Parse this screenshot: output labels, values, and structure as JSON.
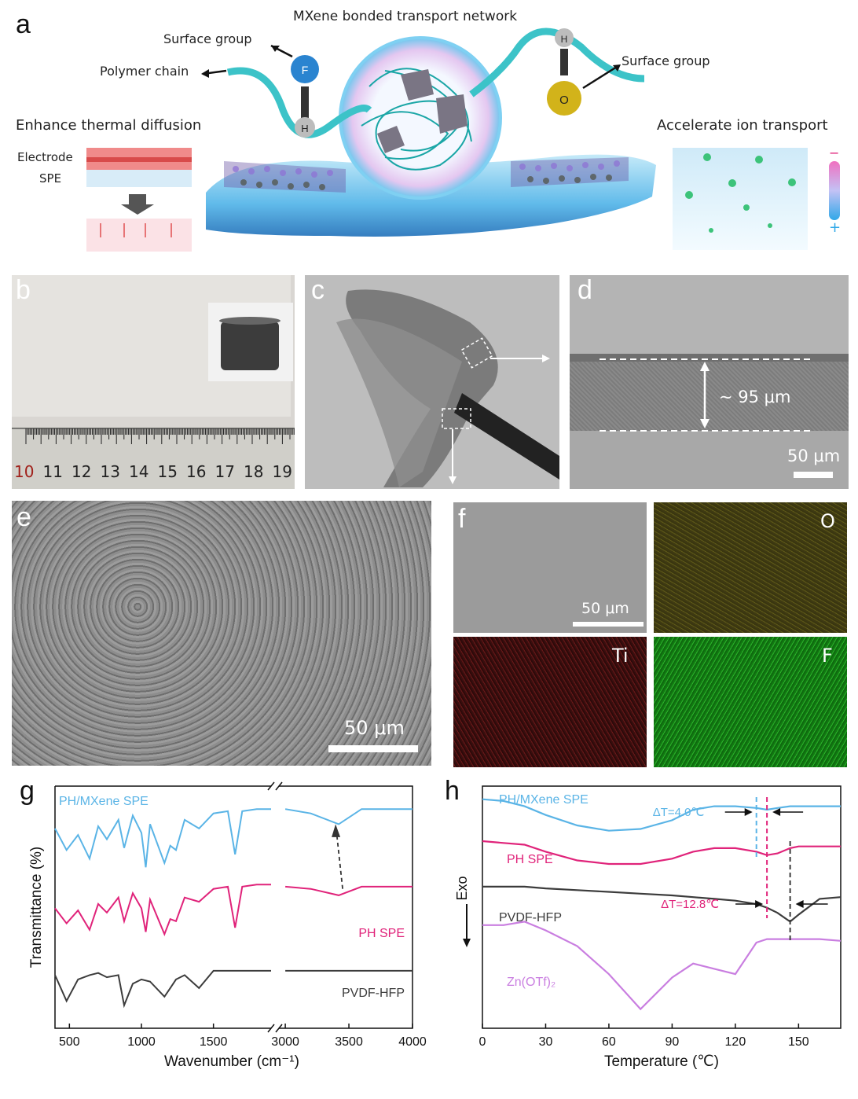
{
  "panels": {
    "a": "a",
    "b": "b",
    "c": "c",
    "d": "d",
    "e": "e",
    "f": "f",
    "g": "g",
    "h": "h"
  },
  "schematic": {
    "title": "MXene bonded transport network",
    "surface_group_left": "Surface group",
    "surface_group_right": "Surface group",
    "polymer_chain": "Polymer chain",
    "thermal": "Enhance thermal diffusion",
    "ion": "Accelerate ion transport",
    "electrode": "Electrode",
    "spe": "SPE",
    "atom_f": "F",
    "atom_h1": "H",
    "atom_h2": "H",
    "atom_o": "O",
    "minus": "−",
    "plus": "+"
  },
  "ruler": {
    "numbers": [
      "10",
      "11",
      "12",
      "13",
      "14",
      "15",
      "16",
      "17",
      "18",
      "19"
    ]
  },
  "panel_d": {
    "thickness": "~ 95 μm",
    "scale": "50 μm"
  },
  "panel_e": {
    "scale": "50 μm"
  },
  "panel_f": {
    "scale": "50 μm",
    "O": "O",
    "Ti": "Ti",
    "F": "F"
  },
  "colors": {
    "mxene": "#5ab4e6",
    "ph": "#e0237a",
    "pvdf": "#3c3c3c",
    "zn": "#c97ee0"
  },
  "chart_data": [
    {
      "type": "line",
      "panel": "g",
      "xlabel": "Wavenumber (cm⁻¹)",
      "ylabel": "Transmittance (%)",
      "x_ticks": [
        "500",
        "1000",
        "1500",
        "3000",
        "3500",
        "4000"
      ],
      "axis_break": [
        1900,
        2950
      ],
      "xlim": [
        400,
        4000
      ],
      "series": [
        {
          "name": "PH/MXene SPE",
          "color": "#5ab4e6",
          "x": [
            400,
            480,
            560,
            640,
            700,
            760,
            840,
            880,
            940,
            1000,
            1030,
            1060,
            1160,
            1200,
            1240,
            1300,
            1400,
            1500,
            1600,
            1650,
            1700,
            1800,
            1900,
            3000,
            3200,
            3420,
            3600,
            3800,
            4000
          ],
          "y": [
            84,
            74,
            81,
            70,
            85,
            79,
            88,
            75,
            90,
            82,
            66,
            86,
            68,
            76,
            74,
            88,
            84,
            91,
            92,
            72,
            92,
            93,
            93,
            93,
            91,
            86,
            93,
            93,
            93
          ]
        },
        {
          "name": "PH SPE",
          "color": "#e0237a",
          "x": [
            400,
            480,
            560,
            640,
            700,
            760,
            840,
            880,
            940,
            1000,
            1030,
            1060,
            1160,
            1200,
            1240,
            1300,
            1400,
            1500,
            1600,
            1650,
            1700,
            1800,
            1900,
            3000,
            3200,
            3420,
            3600,
            3800,
            4000
          ],
          "y": [
            47,
            40,
            46,
            37,
            49,
            45,
            52,
            41,
            54,
            47,
            36,
            51,
            35,
            42,
            41,
            52,
            50,
            56,
            57,
            38,
            57,
            58,
            58,
            57,
            56,
            53,
            57,
            57,
            57
          ]
        },
        {
          "name": "PVDF-HFP",
          "color": "#3c3c3c",
          "x": [
            400,
            480,
            560,
            640,
            700,
            760,
            840,
            880,
            940,
            1000,
            1060,
            1160,
            1200,
            1240,
            1300,
            1400,
            1500,
            1600,
            1700,
            1800,
            1900,
            3000,
            3500,
            4000
          ],
          "y": [
            16,
            4,
            14,
            16,
            17,
            15,
            16,
            2,
            12,
            14,
            13,
            6,
            10,
            14,
            16,
            10,
            18,
            18,
            18,
            18,
            18,
            18,
            18,
            18
          ]
        }
      ]
    },
    {
      "type": "line",
      "panel": "h",
      "xlabel": "Temperature (℃)",
      "ylabel": "Exo",
      "x": [
        0,
        10,
        20,
        30,
        45,
        60,
        75,
        90,
        100,
        110,
        120,
        130,
        135,
        140,
        146,
        150,
        160,
        170
      ],
      "x_ticks": [
        "0",
        "30",
        "60",
        "90",
        "120",
        "150"
      ],
      "xlim": [
        0,
        170
      ],
      "annotations": [
        "ΔT=4.0℃",
        "ΔT=12.8℃"
      ],
      "series": [
        {
          "name": "PH/MXene SPE",
          "color": "#5ab4e6",
          "y": [
            92,
            91,
            88,
            83,
            77,
            74,
            75,
            80,
            86,
            88,
            88,
            87,
            86,
            87,
            88,
            88,
            88,
            88
          ]
        },
        {
          "name": "PH SPE",
          "color": "#e0237a",
          "y": [
            68,
            67,
            66,
            62,
            57,
            55,
            55,
            58,
            62,
            64,
            64,
            62,
            60,
            61,
            64,
            65,
            65,
            65
          ]
        },
        {
          "name": "PVDF-HFP",
          "color": "#3c3c3c",
          "y": [
            42,
            42,
            42,
            41,
            40,
            39,
            38,
            37,
            36,
            35,
            34,
            32,
            30,
            27,
            22,
            26,
            35,
            36
          ]
        },
        {
          "name": "Zn(OTf)₂",
          "color": "#c97ee0",
          "y": [
            20,
            20,
            22,
            17,
            8,
            -8,
            -28,
            -10,
            -2,
            -5,
            -8,
            10,
            12,
            12,
            12,
            12,
            12,
            11
          ]
        }
      ]
    }
  ]
}
